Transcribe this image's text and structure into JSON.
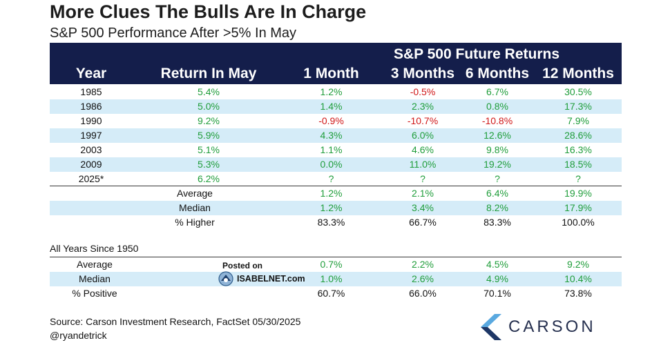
{
  "title": "More Clues The Bulls Are In Charge",
  "subtitle": "S&P 500 Performance After >5% In May",
  "header": {
    "supertitle": "S&P 500 Future Returns",
    "columns": [
      "Year",
      "Return In May",
      "1 Month",
      "3 Months",
      "6 Months",
      "12 Months"
    ]
  },
  "rows": [
    {
      "year": "1985",
      "may": "5.4%",
      "m1": "1.2%",
      "m3": "-0.5%",
      "m6": "6.7%",
      "m12": "30.5%"
    },
    {
      "year": "1986",
      "may": "5.0%",
      "m1": "1.4%",
      "m3": "2.3%",
      "m6": "0.8%",
      "m12": "17.3%"
    },
    {
      "year": "1990",
      "may": "9.2%",
      "m1": "-0.9%",
      "m3": "-10.7%",
      "m6": "-10.8%",
      "m12": "7.9%"
    },
    {
      "year": "1997",
      "may": "5.9%",
      "m1": "4.3%",
      "m3": "6.0%",
      "m6": "12.6%",
      "m12": "28.6%"
    },
    {
      "year": "2003",
      "may": "5.1%",
      "m1": "1.1%",
      "m3": "4.6%",
      "m6": "9.8%",
      "m12": "16.3%"
    },
    {
      "year": "2009",
      "may": "5.3%",
      "m1": "0.0%",
      "m3": "11.0%",
      "m6": "19.2%",
      "m12": "18.5%"
    },
    {
      "year": "2025*",
      "may": "6.2%",
      "m1": "?",
      "m3": "?",
      "m6": "?",
      "m12": "?"
    }
  ],
  "summary": [
    {
      "label": "Average",
      "m1": "1.2%",
      "m3": "2.1%",
      "m6": "6.4%",
      "m12": "19.9%"
    },
    {
      "label": "Median",
      "m1": "1.2%",
      "m3": "3.4%",
      "m6": "8.2%",
      "m12": "17.9%"
    },
    {
      "label": "% Higher",
      "m1": "83.3%",
      "m3": "66.7%",
      "m6": "83.3%",
      "m12": "100.0%"
    }
  ],
  "all_years": {
    "label": "All Years Since 1950",
    "rows": [
      {
        "label": "Average",
        "m1": "0.7%",
        "m3": "2.2%",
        "m6": "4.5%",
        "m12": "9.2%"
      },
      {
        "label": "Median",
        "m1": "1.0%",
        "m3": "2.6%",
        "m6": "4.9%",
        "m12": "10.4%"
      },
      {
        "label": "% Positive",
        "m1": "60.7%",
        "m3": "66.0%",
        "m6": "70.1%",
        "m12": "73.8%"
      }
    ]
  },
  "watermark": {
    "posted": "Posted on",
    "site": "ISABELNET.com"
  },
  "footer": {
    "source": "Source: Carson Investment Research, FactSet 05/30/2025",
    "handle": "@ryandetrick",
    "brand": "CARSON"
  },
  "colors": {
    "header_bg": "#141e4b",
    "band": "#d5ecf8",
    "positive": "#1f9d3a",
    "negative": "#d01818"
  }
}
